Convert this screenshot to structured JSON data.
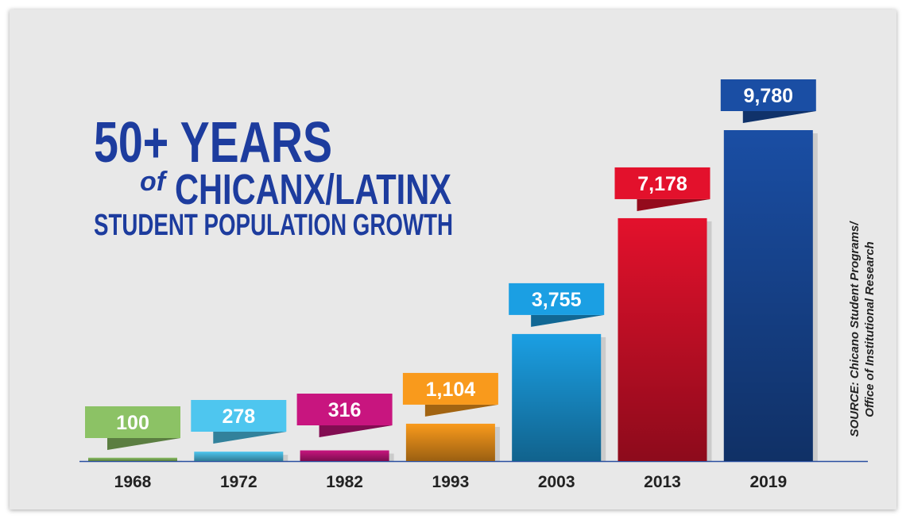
{
  "chart_data": {
    "type": "bar",
    "title": {
      "line1": "50+ YEARS",
      "of": "of",
      "line2": "CHICANX/LATINX",
      "line3": "STUDENT POPULATION GROWTH"
    },
    "source": [
      "SOURCE: Chicano Student Programs/",
      "Office of Institutional Research"
    ],
    "categories": [
      "1968",
      "1972",
      "1982",
      "1993",
      "2003",
      "2013",
      "2019"
    ],
    "values": [
      100,
      278,
      316,
      1104,
      3755,
      7178,
      9780
    ],
    "value_labels": [
      "100",
      "278",
      "316",
      "1,104",
      "3,755",
      "7,178",
      "9,780"
    ],
    "colors": [
      "#8cc265",
      "#4ec6ef",
      "#c8157f",
      "#f99a1c",
      "#1b9fe3",
      "#e3112c",
      "#1a4ea4"
    ]
  }
}
